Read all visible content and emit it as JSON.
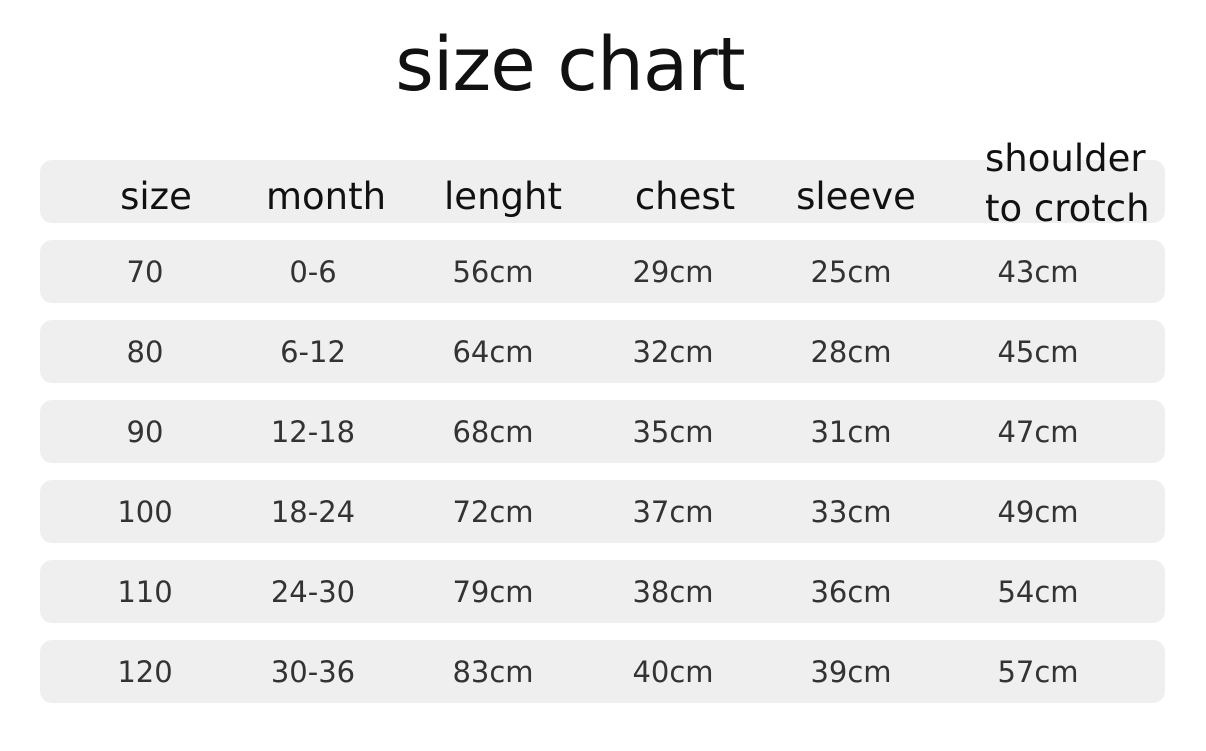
{
  "title": "size chart",
  "headers": [
    "size",
    "month",
    "lenght",
    "chest",
    "sleeve",
    "shoulder to crotch"
  ],
  "shoulder_lines": [
    "shoulder",
    "to crotch"
  ],
  "rows": [
    [
      "70",
      "0-6",
      "56cm",
      "29cm",
      "25cm",
      "43cm"
    ],
    [
      "80",
      "6-12",
      "64cm",
      "32cm",
      "28cm",
      "45cm"
    ],
    [
      "90",
      "12-18",
      "68cm",
      "35cm",
      "31cm",
      "47cm"
    ],
    [
      "100",
      "18-24",
      "72cm",
      "37cm",
      "33cm",
      "49cm"
    ],
    [
      "110",
      "24-30",
      "79cm",
      "38cm",
      "36cm",
      "54cm"
    ],
    [
      "120",
      "30-36",
      "83cm",
      "40cm",
      "39cm",
      "57cm"
    ]
  ],
  "colors": {
    "band": "#efefef",
    "text": "#333333"
  }
}
